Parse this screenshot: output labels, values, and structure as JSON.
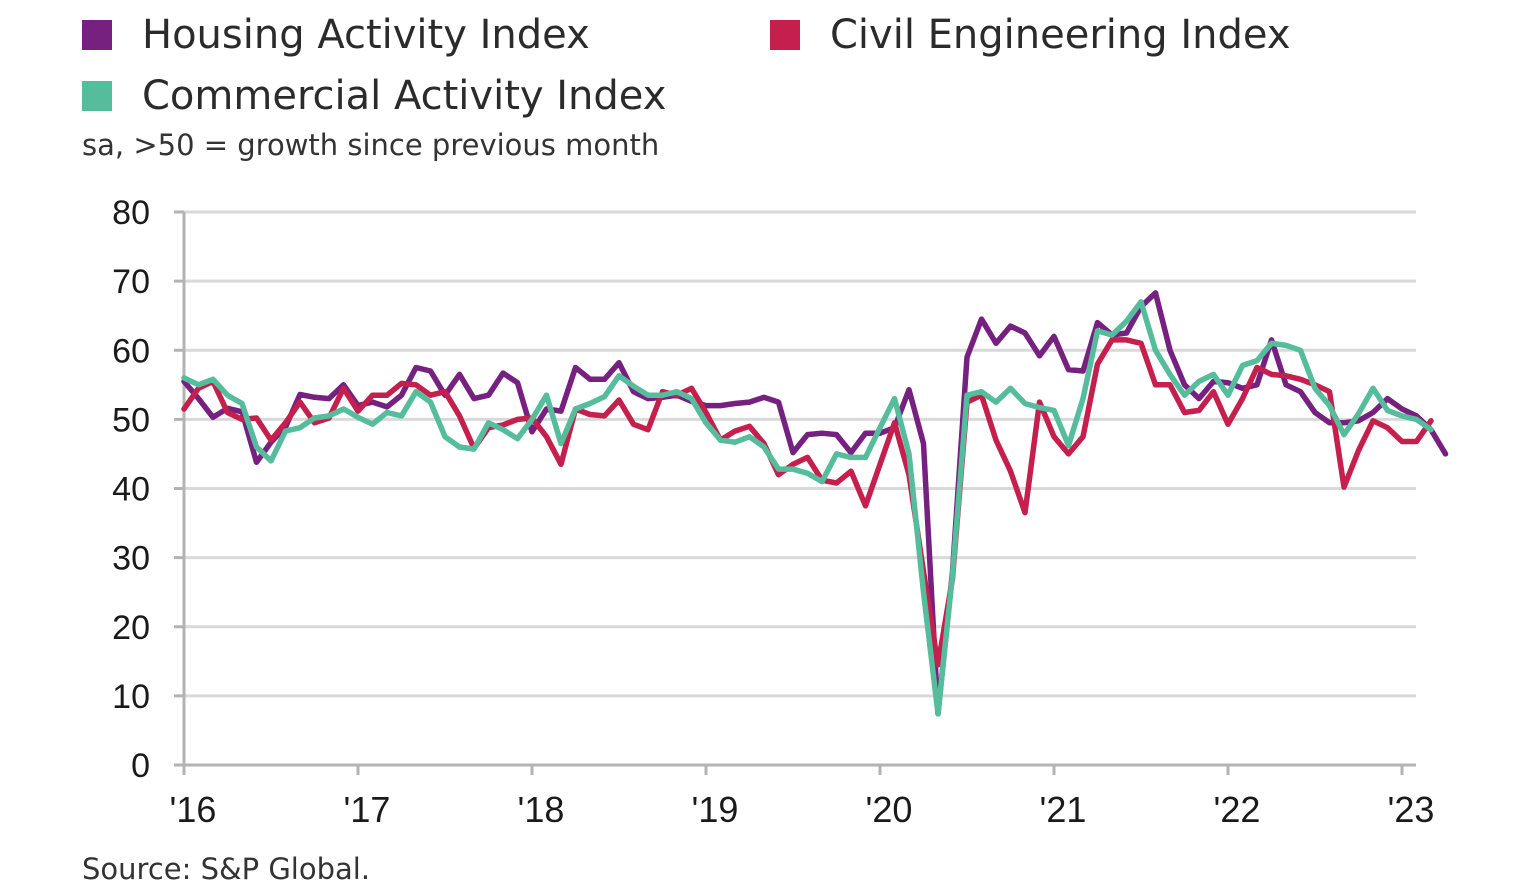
{
  "chart_data": {
    "type": "line",
    "subtitle": "sa, >50 = growth since previous month",
    "source": "Source: S&P Global.",
    "ylim": [
      0,
      80
    ],
    "yticks": [
      0,
      10,
      20,
      30,
      40,
      50,
      60,
      70,
      80
    ],
    "x_start": "2016-01",
    "x_end": "2023-01",
    "x_ticks": [
      {
        "label": "'16",
        "value": "2016-01"
      },
      {
        "label": "'17",
        "value": "2017-01"
      },
      {
        "label": "'18",
        "value": "2018-01"
      },
      {
        "label": "'19",
        "value": "2019-01"
      },
      {
        "label": "'20",
        "value": "2020-01"
      },
      {
        "label": "'21",
        "value": "2021-01"
      },
      {
        "label": "'22",
        "value": "2022-01"
      },
      {
        "label": "'23",
        "value": "2023-01"
      }
    ],
    "grid": true,
    "series": [
      {
        "name": "Housing Activity Index",
        "color": "#76217f",
        "values": [
          55.5,
          53.0,
          50.3,
          51.6,
          51.1,
          43.8,
          46.7,
          48.9,
          53.6,
          53.2,
          53.0,
          55.0,
          52.0,
          52.5,
          51.8,
          53.5,
          57.5,
          57.0,
          53.5,
          56.5,
          53.0,
          53.5,
          56.7,
          55.3,
          48.2,
          51.5,
          51.2,
          57.5,
          55.8,
          55.8,
          58.2,
          54.0,
          53.0,
          53.2,
          53.5,
          52.6,
          52.0,
          52.0,
          52.3,
          52.5,
          53.2,
          52.5,
          45.2,
          47.8,
          48.0,
          47.8,
          45.2,
          48.0,
          48.0,
          48.8,
          54.3,
          46.5,
          7.4,
          28.0,
          59.0,
          64.5,
          61.0,
          63.5,
          62.5,
          59.2,
          62.0,
          57.2,
          57.0,
          64.0,
          62.2,
          62.5,
          66.3,
          68.3,
          60.0,
          55.0,
          53.0,
          55.5,
          55.3,
          54.5,
          55.0,
          61.5,
          55.0,
          54.0,
          51.0,
          49.5,
          49.5,
          49.8,
          51.0,
          53.0,
          51.5,
          50.5,
          48.5,
          45.0
        ]
      },
      {
        "name": "Civil Engineering Index",
        "color": "#c41f4d",
        "values": [
          51.5,
          54.5,
          55.5,
          51.0,
          50.0,
          50.2,
          47.0,
          49.5,
          52.5,
          49.5,
          50.2,
          54.5,
          51.2,
          53.5,
          53.5,
          55.2,
          55.0,
          53.5,
          54.0,
          50.5,
          45.8,
          48.8,
          49.2,
          50.0,
          50.2,
          47.5,
          43.5,
          51.5,
          50.7,
          50.5,
          52.8,
          49.3,
          48.5,
          54.0,
          53.5,
          54.5,
          51.0,
          47.0,
          48.3,
          49.0,
          46.5,
          42.0,
          43.5,
          44.5,
          41.2,
          40.8,
          42.5,
          37.5,
          43.5,
          49.5,
          42.0,
          28.0,
          14.5,
          27.0,
          52.5,
          53.5,
          47.0,
          42.5,
          36.5,
          52.5,
          47.5,
          45.0,
          47.5,
          58.0,
          61.5,
          61.5,
          61.0,
          55.0,
          55.0,
          51.0,
          51.3,
          54.0,
          49.3,
          53.0,
          57.5,
          56.5,
          56.3,
          55.8,
          55.0,
          54.0,
          40.2,
          45.5,
          49.8,
          48.8,
          46.8,
          46.8,
          49.8
        ]
      },
      {
        "name": "Commercial Activity Index",
        "color": "#55bc9c",
        "values": [
          56.0,
          55.0,
          55.8,
          53.5,
          52.3,
          46.0,
          44.0,
          48.3,
          48.8,
          50.2,
          50.5,
          51.5,
          50.3,
          49.3,
          51.0,
          50.5,
          54.0,
          52.5,
          47.5,
          46.0,
          45.7,
          49.5,
          48.5,
          47.2,
          50.0,
          53.5,
          46.5,
          51.5,
          52.3,
          53.3,
          56.3,
          54.8,
          53.5,
          53.5,
          54.0,
          53.0,
          49.5,
          47.0,
          46.7,
          47.5,
          46.0,
          42.8,
          42.8,
          42.2,
          41.0,
          45.0,
          44.5,
          44.5,
          48.8,
          53.0,
          45.0,
          25.0,
          7.4,
          27.5,
          53.5,
          54.0,
          52.5,
          54.5,
          52.3,
          51.7,
          51.3,
          46.2,
          53.0,
          62.8,
          62.2,
          64.2,
          67.0,
          60.0,
          56.5,
          53.5,
          55.5,
          56.5,
          53.5,
          57.8,
          58.5,
          61.0,
          60.7,
          60.0,
          54.5,
          52.0,
          47.8,
          50.8,
          54.5,
          51.3,
          50.5,
          50.0,
          48.5
        ]
      }
    ]
  }
}
